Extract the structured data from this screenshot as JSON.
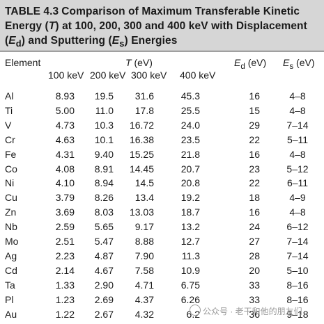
{
  "caption": {
    "label": "TABLE 4.3",
    "line1": "Comparison of Maximum Transferable Kinetic",
    "line2_a": "Energy (",
    "line2_t": "T",
    "line2_b": ") at 100, 200, 300 and 400 keV with Displacement",
    "line3_a": "(",
    "line3_e": "E",
    "line3_d": "d",
    "line3_b": ") and Sputtering  (",
    "line3_e2": "E",
    "line3_s": "s",
    "line3_c": ") Energies"
  },
  "header": {
    "element": "Element",
    "t_symbol": "T",
    "t_unit": " (eV)",
    "kev": [
      "100 keV",
      "200 keV",
      "300 keV",
      "400 keV"
    ],
    "ed_symbol": "E",
    "ed_sub": "d",
    "ed_unit": " (eV)",
    "es_symbol": "E",
    "es_sub": "s",
    "es_unit": " (eV)"
  },
  "rows": [
    {
      "element": "Al",
      "t100": "8.93",
      "t200": "19.5",
      "t300": "31.6",
      "t400": "45.3",
      "ed": "16",
      "es": "4–8"
    },
    {
      "element": "Ti",
      "t100": "5.00",
      "t200": "11.0",
      "t300": "17.8",
      "t400": "25.5",
      "ed": "15",
      "es": "4–8"
    },
    {
      "element": "V",
      "t100": "4.73",
      "t200": "10.3",
      "t300": "16.72",
      "t400": "24.0",
      "ed": "29",
      "es": "7–14"
    },
    {
      "element": "Cr",
      "t100": "4.63",
      "t200": "10.1",
      "t300": "16.38",
      "t400": "23.5",
      "ed": "22",
      "es": "5–11"
    },
    {
      "element": "Fe",
      "t100": "4.31",
      "t200": "9.40",
      "t300": "15.25",
      "t400": "21.8",
      "ed": "16",
      "es": "4–8"
    },
    {
      "element": "Co",
      "t100": "4.08",
      "t200": "8.91",
      "t300": "14.45",
      "t400": "20.7",
      "ed": "23",
      "es": "5–12"
    },
    {
      "element": "Ni",
      "t100": "4.10",
      "t200": "8.94",
      "t300": "14.5",
      "t400": "20.8",
      "ed": "22",
      "es": "6–11"
    },
    {
      "element": "Cu",
      "t100": "3.79",
      "t200": "8.26",
      "t300": "13.4",
      "t400": "19.2",
      "ed": "18",
      "es": "4–9"
    },
    {
      "element": "Zn",
      "t100": "3.69",
      "t200": "8.03",
      "t300": "13.03",
      "t400": "18.7",
      "ed": "16",
      "es": "4–8"
    },
    {
      "element": "Nb",
      "t100": "2.59",
      "t200": "5.65",
      "t300": "9.17",
      "t400": "13.2",
      "ed": "24",
      "es": "6–12"
    },
    {
      "element": "Mo",
      "t100": "2.51",
      "t200": "5.47",
      "t300": "8.88",
      "t400": "12.7",
      "ed": "27",
      "es": "7–14"
    },
    {
      "element": "Ag",
      "t100": "2.23",
      "t200": "4.87",
      "t300": "7.90",
      "t400": "11.3",
      "ed": "28",
      "es": "7–14"
    },
    {
      "element": "Cd",
      "t100": "2.14",
      "t200": "4.67",
      "t300": "7.58",
      "t400": "10.9",
      "ed": "20",
      "es": "5–10"
    },
    {
      "element": "Ta",
      "t100": "1.33",
      "t200": "2.90",
      "t300": "4.71",
      "t400": "6.75",
      "ed": "33",
      "es": "8–16"
    },
    {
      "element": "Pl",
      "t100": "1.23",
      "t200": "2.69",
      "t300": "4.37",
      "t400": "6.26",
      "ed": "33",
      "es": "8–16"
    },
    {
      "element": "Au",
      "t100": "1.22",
      "t200": "2.67",
      "t300": "4.32",
      "t400": "6.2",
      "ed": "36",
      "es": "9–18"
    }
  ],
  "watermark": "公众号 · 老干和他的朋友们"
}
